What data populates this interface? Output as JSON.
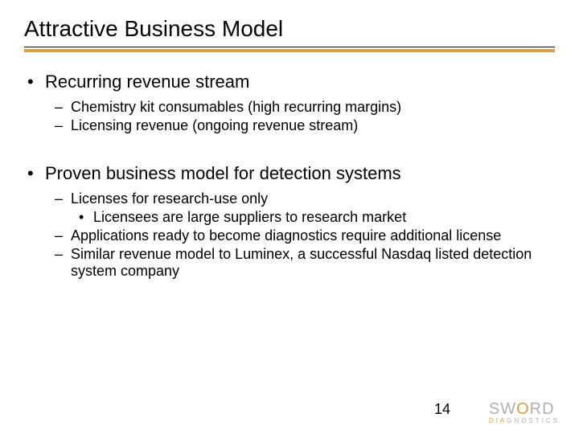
{
  "title": "Attractive Business Model",
  "accent_color": "#d8a13c",
  "text_color": "#000000",
  "background_color": "#ffffff",
  "title_fontsize": 28,
  "l1_fontsize": 22,
  "l2_fontsize": 18,
  "bullets": [
    {
      "text": "Recurring revenue stream",
      "sub": [
        {
          "text": "Chemistry kit consumables (high recurring margins)"
        },
        {
          "text": "Licensing revenue (ongoing revenue stream)"
        }
      ]
    },
    {
      "text": "Proven business model for detection systems",
      "sub": [
        {
          "text": "Licenses for research-use only",
          "sub": [
            {
              "text": "Licensees are large suppliers to research market"
            }
          ]
        },
        {
          "text": "Applications ready to become diagnostics require additional license"
        },
        {
          "text": "Similar revenue model to Luminex, a successful Nasdaq listed detection system company"
        }
      ]
    }
  ],
  "page_number": "14",
  "logo": {
    "main_pre": "SW",
    "main_accent": "O",
    "main_post": "RD",
    "sub_accent": "DIA",
    "sub_rest": "GNOSTICS"
  }
}
